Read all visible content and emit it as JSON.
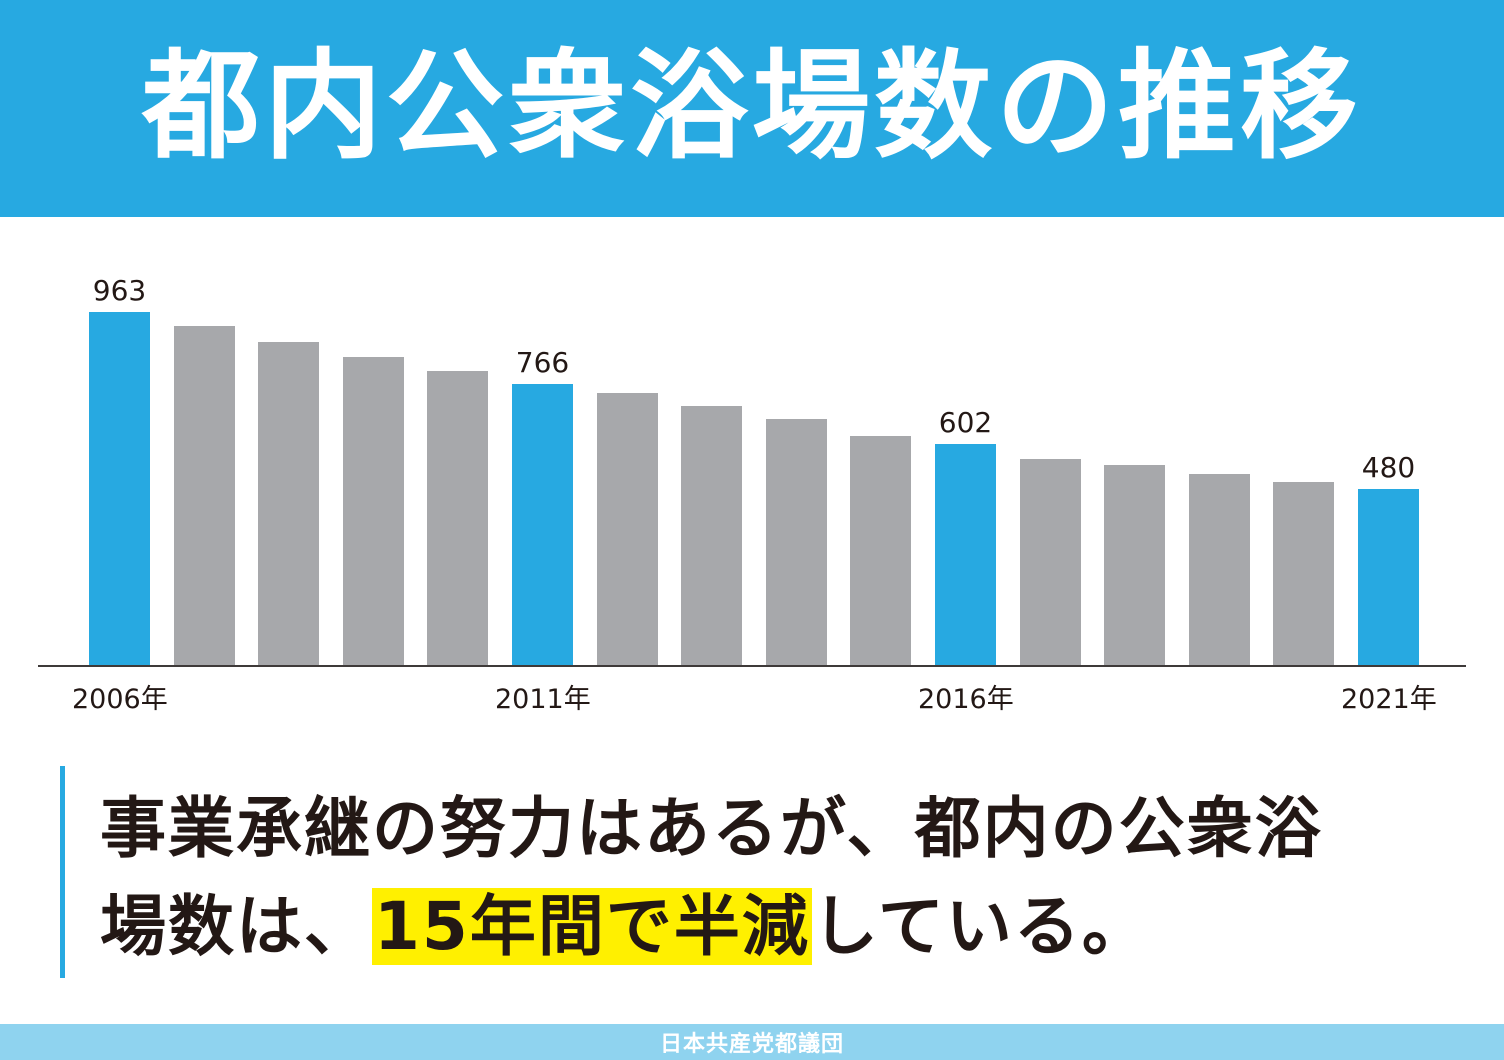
{
  "header": {
    "title": "都内公衆浴場数の推移",
    "background": "#27a9e1"
  },
  "colors": {
    "highlight_bar": "#27a9e1",
    "normal_bar": "#a7a8ab",
    "highlight_text_bg": "#fff000"
  },
  "chart_data": {
    "type": "bar",
    "title": "都内公衆浴場数の推移",
    "xlabel": "",
    "ylabel": "",
    "categories": [
      "2006年",
      "2007年",
      "2008年",
      "2009年",
      "2010年",
      "2011年",
      "2012年",
      "2013年",
      "2014年",
      "2015年",
      "2016年",
      "2017年",
      "2018年",
      "2019年",
      "2020年",
      "2021年"
    ],
    "values": [
      963,
      925,
      881,
      840,
      802,
      766,
      742,
      706,
      671,
      625,
      602,
      562,
      546,
      521,
      499,
      480
    ],
    "labeled_values": {
      "2006年": 963,
      "2011年": 766,
      "2016年": 602,
      "2021年": 480
    },
    "highlighted": [
      "2006年",
      "2011年",
      "2016年",
      "2021年"
    ],
    "visible_tick_labels": [
      "2006年",
      "2011年",
      "2016年",
      "2021年"
    ],
    "ylim": [
      0,
      963
    ],
    "grid": false,
    "legend": null
  },
  "message": {
    "line1": "事業承継の努力はあるが、都内の公衆浴",
    "line2_pre": "場数は、",
    "line2_highlight": "15年間で半減",
    "line2_post": "している。"
  },
  "footer": {
    "text": "日本共産党都議団"
  }
}
